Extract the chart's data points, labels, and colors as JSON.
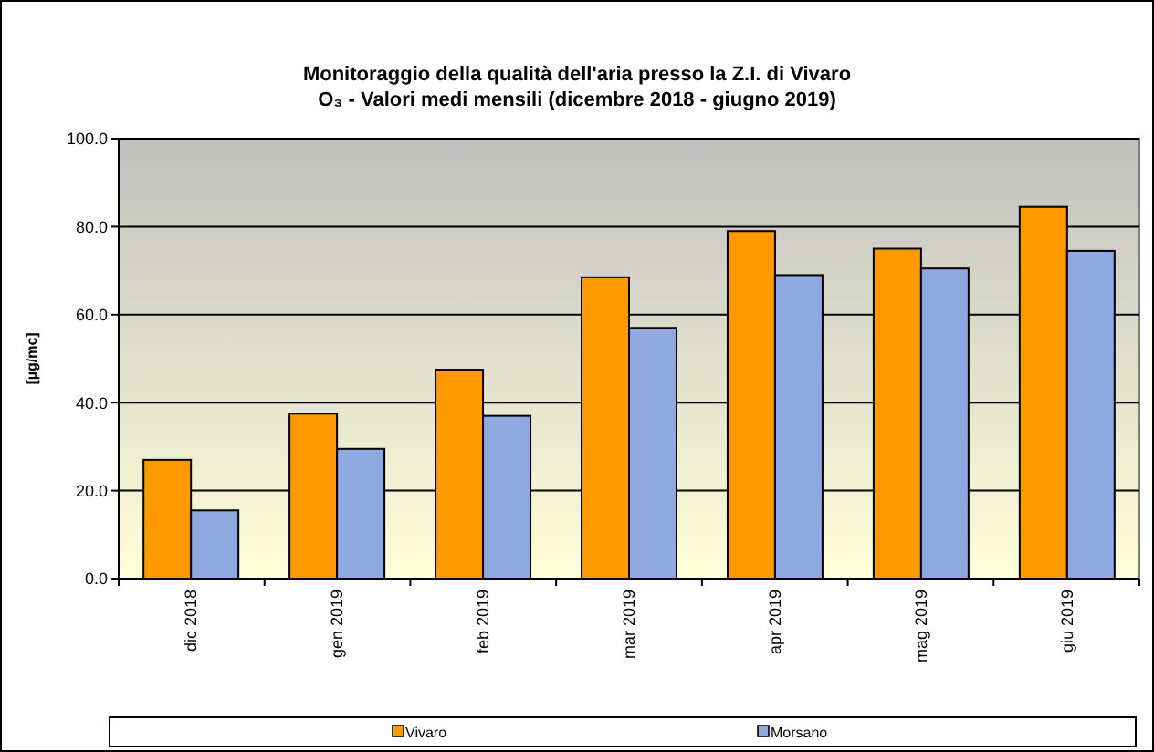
{
  "chart_data": {
    "type": "bar",
    "title": "Monitoraggio della qualità dell'aria presso la Z.I. di Vivaro",
    "subtitle": "O₃ - Valori medi mensili (dicembre 2018 - giugno 2019)",
    "ylabel": "[µg/mc]",
    "categories": [
      "dic 2018",
      "gen 2019",
      "feb 2019",
      "mar 2019",
      "apr 2019",
      "mag 2019",
      "giu 2019"
    ],
    "series": [
      {
        "name": "Vivaro",
        "color": "#ff9900",
        "values": [
          27,
          37.5,
          47.5,
          68.5,
          79,
          75,
          84.5
        ]
      },
      {
        "name": "Morsano",
        "color": "#8fa8e0",
        "values": [
          15.5,
          29.5,
          37,
          57,
          69,
          70.5,
          74.5
        ]
      }
    ],
    "ylim": [
      0,
      100
    ],
    "yticks": [
      {
        "value": 0,
        "label": "0.0"
      },
      {
        "value": 20,
        "label": "20.0"
      },
      {
        "value": 40,
        "label": "40.0"
      },
      {
        "value": 60,
        "label": "60.0"
      },
      {
        "value": 80,
        "label": "80.0"
      },
      {
        "value": 100,
        "label": "100.0"
      }
    ],
    "grid": "y",
    "legend": "bottom"
  }
}
